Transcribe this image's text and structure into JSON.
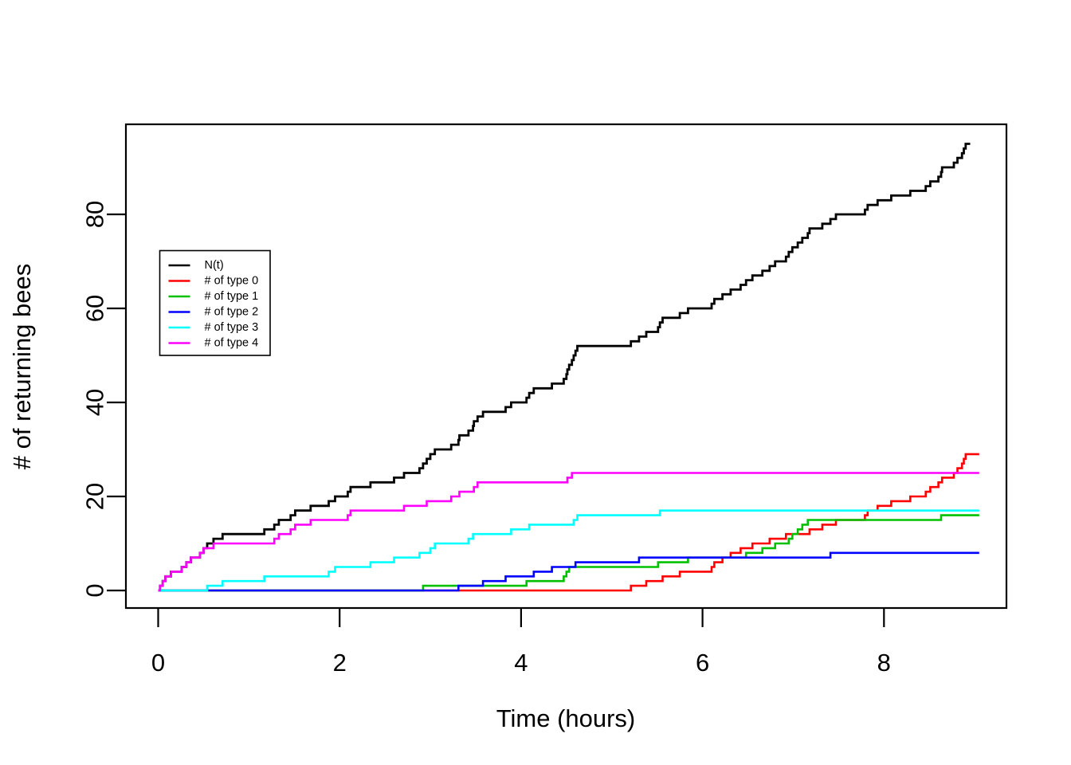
{
  "chart_data": {
    "type": "line",
    "subtype": "step-post-counting-process",
    "title": "",
    "xlabel": "Time (hours)",
    "ylabel": "# of returning bees",
    "xticks": [
      0,
      2,
      4,
      6,
      8
    ],
    "yticks": [
      0,
      20,
      40,
      60,
      80
    ],
    "xlim": [
      0,
      9.05
    ],
    "ylim": [
      0,
      95
    ],
    "grid": false,
    "legend_position": "upper-left-inside",
    "background": "#ffffff",
    "axis_color": "#000000",
    "series": [
      {
        "name": "N(t)",
        "color": "#000000",
        "kind": "derived-total",
        "derived": "sum of all type series; jump times are the union of the type series jump times",
        "start_value": 0,
        "final_value": 95,
        "t_start": 0,
        "t_end": 8.95,
        "jump_times": []
      },
      {
        "name": "# of type 0",
        "color": "#FF0000",
        "kind": "counting",
        "start_value": 0,
        "final_value": 29,
        "t_start": 0,
        "t_end": 9.05,
        "jump_times": [
          5.21,
          5.38,
          5.56,
          5.75,
          6.1,
          6.13,
          6.22,
          6.31,
          6.42,
          6.55,
          6.74,
          6.92,
          7.18,
          7.32,
          7.47,
          7.79,
          7.82,
          7.93,
          8.08,
          8.29,
          8.46,
          8.51,
          8.6,
          8.64,
          8.77,
          8.81,
          8.86,
          8.88,
          8.9
        ]
      },
      {
        "name": "# of type 1",
        "color": "#00C000",
        "kind": "counting",
        "start_value": 0,
        "final_value": 16,
        "t_start": 0,
        "t_end": 9.05,
        "jump_times": [
          2.92,
          4.06,
          4.47,
          4.5,
          4.53,
          5.51,
          5.84,
          6.48,
          6.66,
          6.8,
          6.95,
          6.99,
          7.05,
          7.1,
          7.16,
          8.63
        ]
      },
      {
        "name": "# of type 2",
        "color": "#0000FF",
        "kind": "counting",
        "start_value": 0,
        "final_value": 8,
        "t_start": 0,
        "t_end": 9.05,
        "jump_times": [
          3.31,
          3.58,
          3.83,
          4.14,
          4.34,
          4.6,
          5.3,
          7.41
        ]
      },
      {
        "name": "# of type 3",
        "color": "#00FFFF",
        "kind": "counting",
        "start_value": 0,
        "final_value": 17,
        "t_start": 0,
        "t_end": 9.05,
        "jump_times": [
          0.54,
          0.71,
          1.17,
          1.88,
          1.95,
          2.34,
          2.6,
          2.88,
          3.0,
          3.05,
          3.42,
          3.47,
          3.89,
          4.09,
          4.58,
          4.62,
          5.53
        ]
      },
      {
        "name": "# of type 4",
        "color": "#FF00FF",
        "kind": "counting",
        "start_value": 0,
        "final_value": 25,
        "t_start": 0,
        "t_end": 9.05,
        "jump_times": [
          0.02,
          0.05,
          0.08,
          0.14,
          0.26,
          0.31,
          0.36,
          0.46,
          0.5,
          0.61,
          1.28,
          1.33,
          1.46,
          1.51,
          1.68,
          2.09,
          2.12,
          2.71,
          2.96,
          3.23,
          3.32,
          3.48,
          3.52,
          4.51,
          4.56
        ]
      }
    ],
    "legend": {
      "items": [
        {
          "label": "N(t)",
          "color": "#000000"
        },
        {
          "label": "# of type 0",
          "color": "#FF0000"
        },
        {
          "label": "# of type 1",
          "color": "#00C000"
        },
        {
          "label": "# of type 2",
          "color": "#0000FF"
        },
        {
          "label": "# of type 3",
          "color": "#00FFFF"
        },
        {
          "label": "# of type 4",
          "color": "#FF00FF"
        }
      ]
    }
  }
}
